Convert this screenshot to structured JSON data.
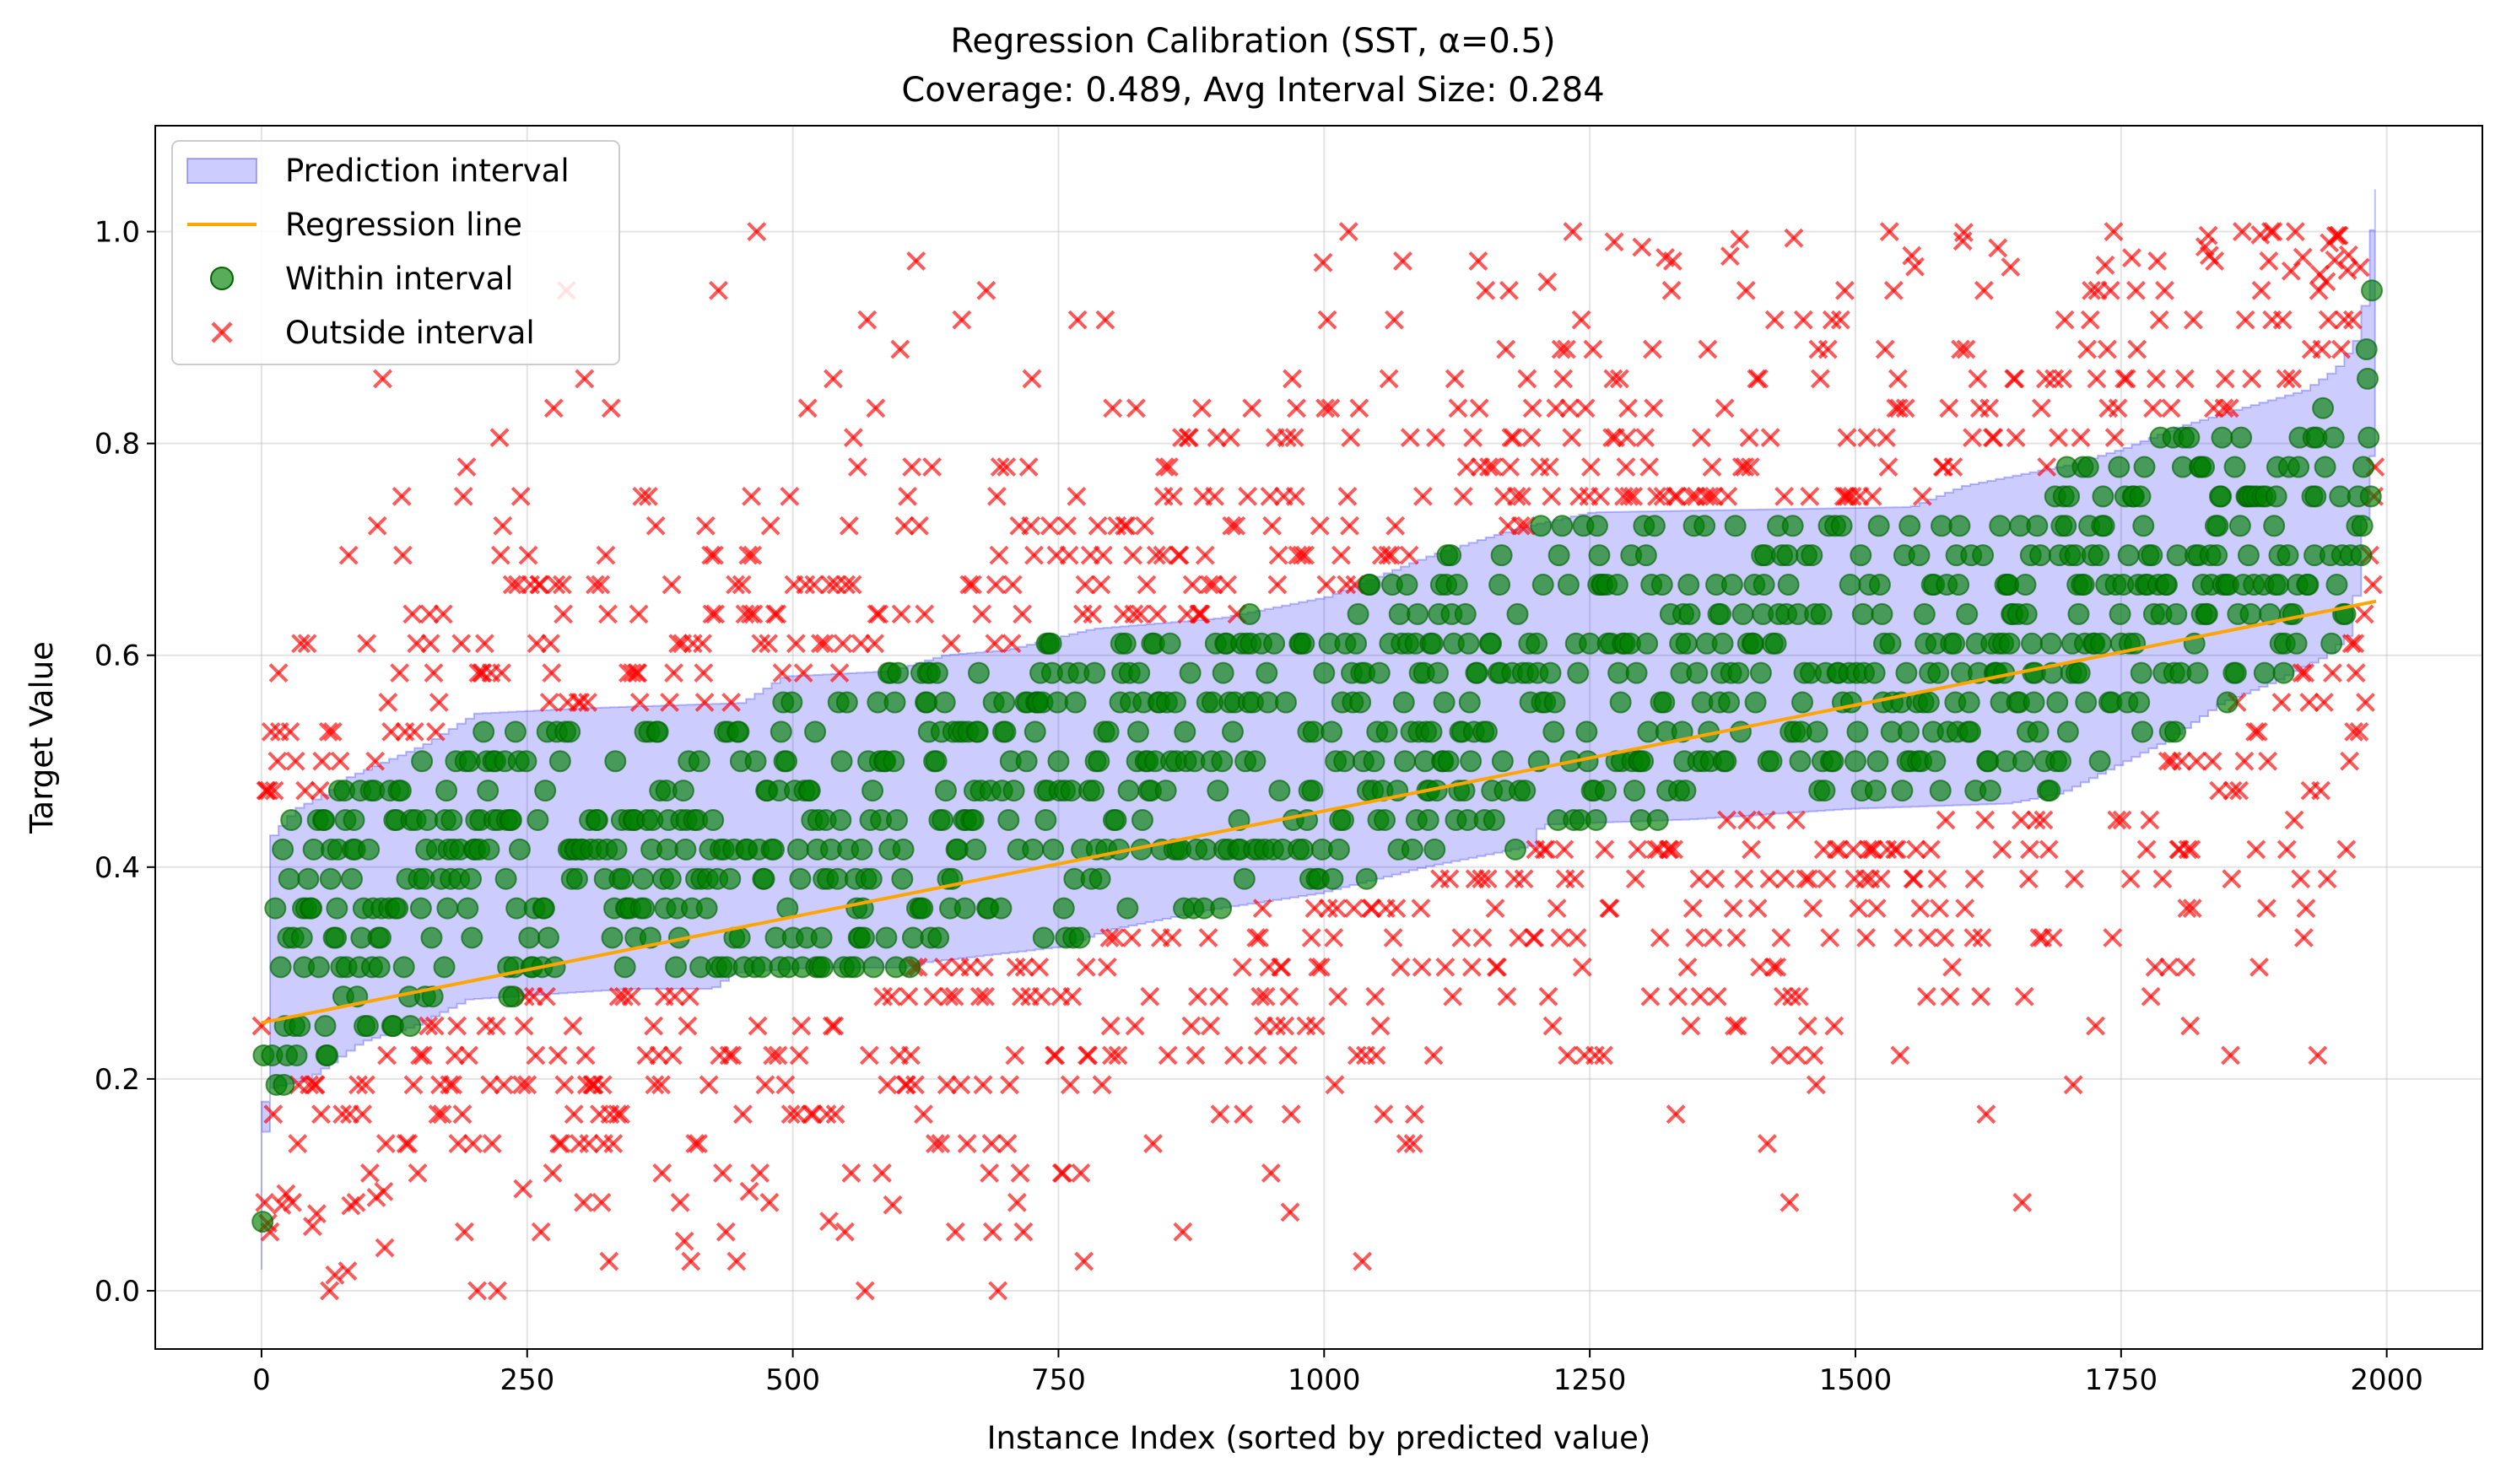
{
  "chart_data": {
    "type": "scatter",
    "title": "Regression Calibration (SST, α=0.5)",
    "subtitle": "Coverage: 0.489, Avg Interval Size: 0.284",
    "xlabel": "Instance Index (sorted by predicted value)",
    "ylabel": "Target Value",
    "xlim": [
      -100,
      2090
    ],
    "ylim": [
      -0.055,
      1.1
    ],
    "x_ticks": [
      0,
      250,
      500,
      750,
      1000,
      1250,
      1500,
      1750,
      2000
    ],
    "y_ticks": [
      0.0,
      0.2,
      0.4,
      0.6,
      0.8,
      1.0
    ],
    "x_tick_labels": [
      "0",
      "250",
      "500",
      "750",
      "1000",
      "1250",
      "1500",
      "1750",
      "2000"
    ],
    "y_tick_labels": [
      "0.0",
      "0.2",
      "0.4",
      "0.6",
      "0.8",
      "1.0"
    ],
    "grid": true,
    "legend_position": "top-left",
    "n_instances": 1990,
    "series": [
      {
        "name": "Prediction interval",
        "kind": "band",
        "color": "#0000ff",
        "opacity": 0.2,
        "lower": [
          [
            0,
            0.02
          ],
          [
            3,
            0.15
          ],
          [
            10,
            0.19
          ],
          [
            50,
            0.2
          ],
          [
            100,
            0.235
          ],
          [
            150,
            0.25
          ],
          [
            200,
            0.275
          ],
          [
            350,
            0.285
          ],
          [
            430,
            0.285
          ],
          [
            450,
            0.3
          ],
          [
            520,
            0.305
          ],
          [
            610,
            0.305
          ],
          [
            630,
            0.31
          ],
          [
            760,
            0.325
          ],
          [
            800,
            0.34
          ],
          [
            900,
            0.36
          ],
          [
            1000,
            0.375
          ],
          [
            1100,
            0.4
          ],
          [
            1200,
            0.42
          ],
          [
            1210,
            0.44
          ],
          [
            1350,
            0.445
          ],
          [
            1500,
            0.455
          ],
          [
            1650,
            0.46
          ],
          [
            1700,
            0.47
          ],
          [
            1800,
            0.52
          ],
          [
            1850,
            0.555
          ],
          [
            1900,
            0.575
          ],
          [
            1950,
            0.6
          ],
          [
            1970,
            0.62
          ],
          [
            1980,
            0.68
          ],
          [
            1990,
            0.8
          ]
        ],
        "upper": [
          [
            0,
            0.15
          ],
          [
            3,
            0.36
          ],
          [
            8,
            0.43
          ],
          [
            30,
            0.455
          ],
          [
            60,
            0.47
          ],
          [
            80,
            0.485
          ],
          [
            150,
            0.515
          ],
          [
            200,
            0.545
          ],
          [
            300,
            0.55
          ],
          [
            450,
            0.555
          ],
          [
            490,
            0.58
          ],
          [
            590,
            0.585
          ],
          [
            640,
            0.6
          ],
          [
            700,
            0.605
          ],
          [
            780,
            0.625
          ],
          [
            900,
            0.635
          ],
          [
            1000,
            0.655
          ],
          [
            1100,
            0.695
          ],
          [
            1180,
            0.72
          ],
          [
            1250,
            0.735
          ],
          [
            1550,
            0.74
          ],
          [
            1600,
            0.76
          ],
          [
            1700,
            0.78
          ],
          [
            1750,
            0.795
          ],
          [
            1800,
            0.815
          ],
          [
            1850,
            0.83
          ],
          [
            1920,
            0.85
          ],
          [
            1950,
            0.87
          ],
          [
            1970,
            0.9
          ],
          [
            1980,
            0.95
          ],
          [
            1987,
            1.04
          ]
        ]
      },
      {
        "name": "Regression line",
        "kind": "line",
        "color": "#ffa500",
        "x": [
          0,
          1990
        ],
        "y": [
          0.253,
          0.651
        ]
      },
      {
        "name": "Within interval",
        "kind": "scatter",
        "marker": "circle",
        "color": "#008000",
        "count": 973
      },
      {
        "name": "Outside interval",
        "kind": "scatter",
        "marker": "x",
        "color": "#ff0000",
        "count": 1017
      }
    ]
  }
}
